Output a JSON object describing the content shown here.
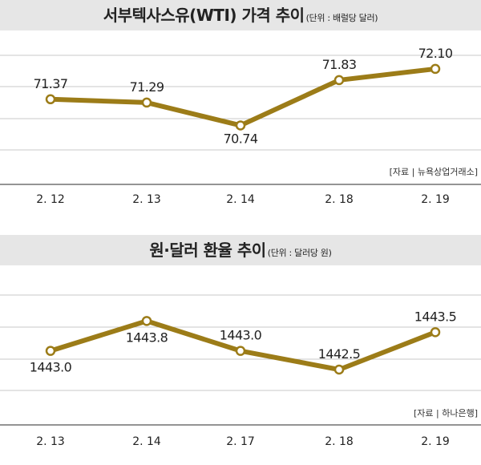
{
  "chart_data": [
    {
      "type": "line",
      "title": "서부텍사스유(WTI) 가격 추이",
      "unit_note": "(단위 : 배럴당 달러)",
      "source": "[자료 | 뉴욕상업거래소]",
      "categories": [
        "2. 12",
        "2. 13",
        "2. 14",
        "2. 18",
        "2. 19"
      ],
      "values": [
        71.37,
        71.29,
        70.74,
        71.83,
        72.1
      ],
      "labels": [
        "71.37",
        "71.29",
        "70.74",
        "71.83",
        "72.10"
      ],
      "ylim": [
        69.9,
        72.6
      ],
      "grid": true,
      "line_color": "#9c7c18"
    },
    {
      "type": "line",
      "title": "원·달러 환율 추이",
      "unit_note": "(단위 : 달러당 원)",
      "source": "[자료 | 하나은행]",
      "categories": [
        "2. 13",
        "2. 14",
        "2. 17",
        "2. 18",
        "2. 19"
      ],
      "values": [
        1443.0,
        1443.8,
        1443.0,
        1442.5,
        1443.5
      ],
      "labels": [
        "1443.0",
        "1443.8",
        "1443.0",
        "1442.5",
        "1443.5"
      ],
      "ylim": [
        1441.6,
        1444.6
      ],
      "grid": true,
      "line_color": "#9c7c18"
    }
  ]
}
